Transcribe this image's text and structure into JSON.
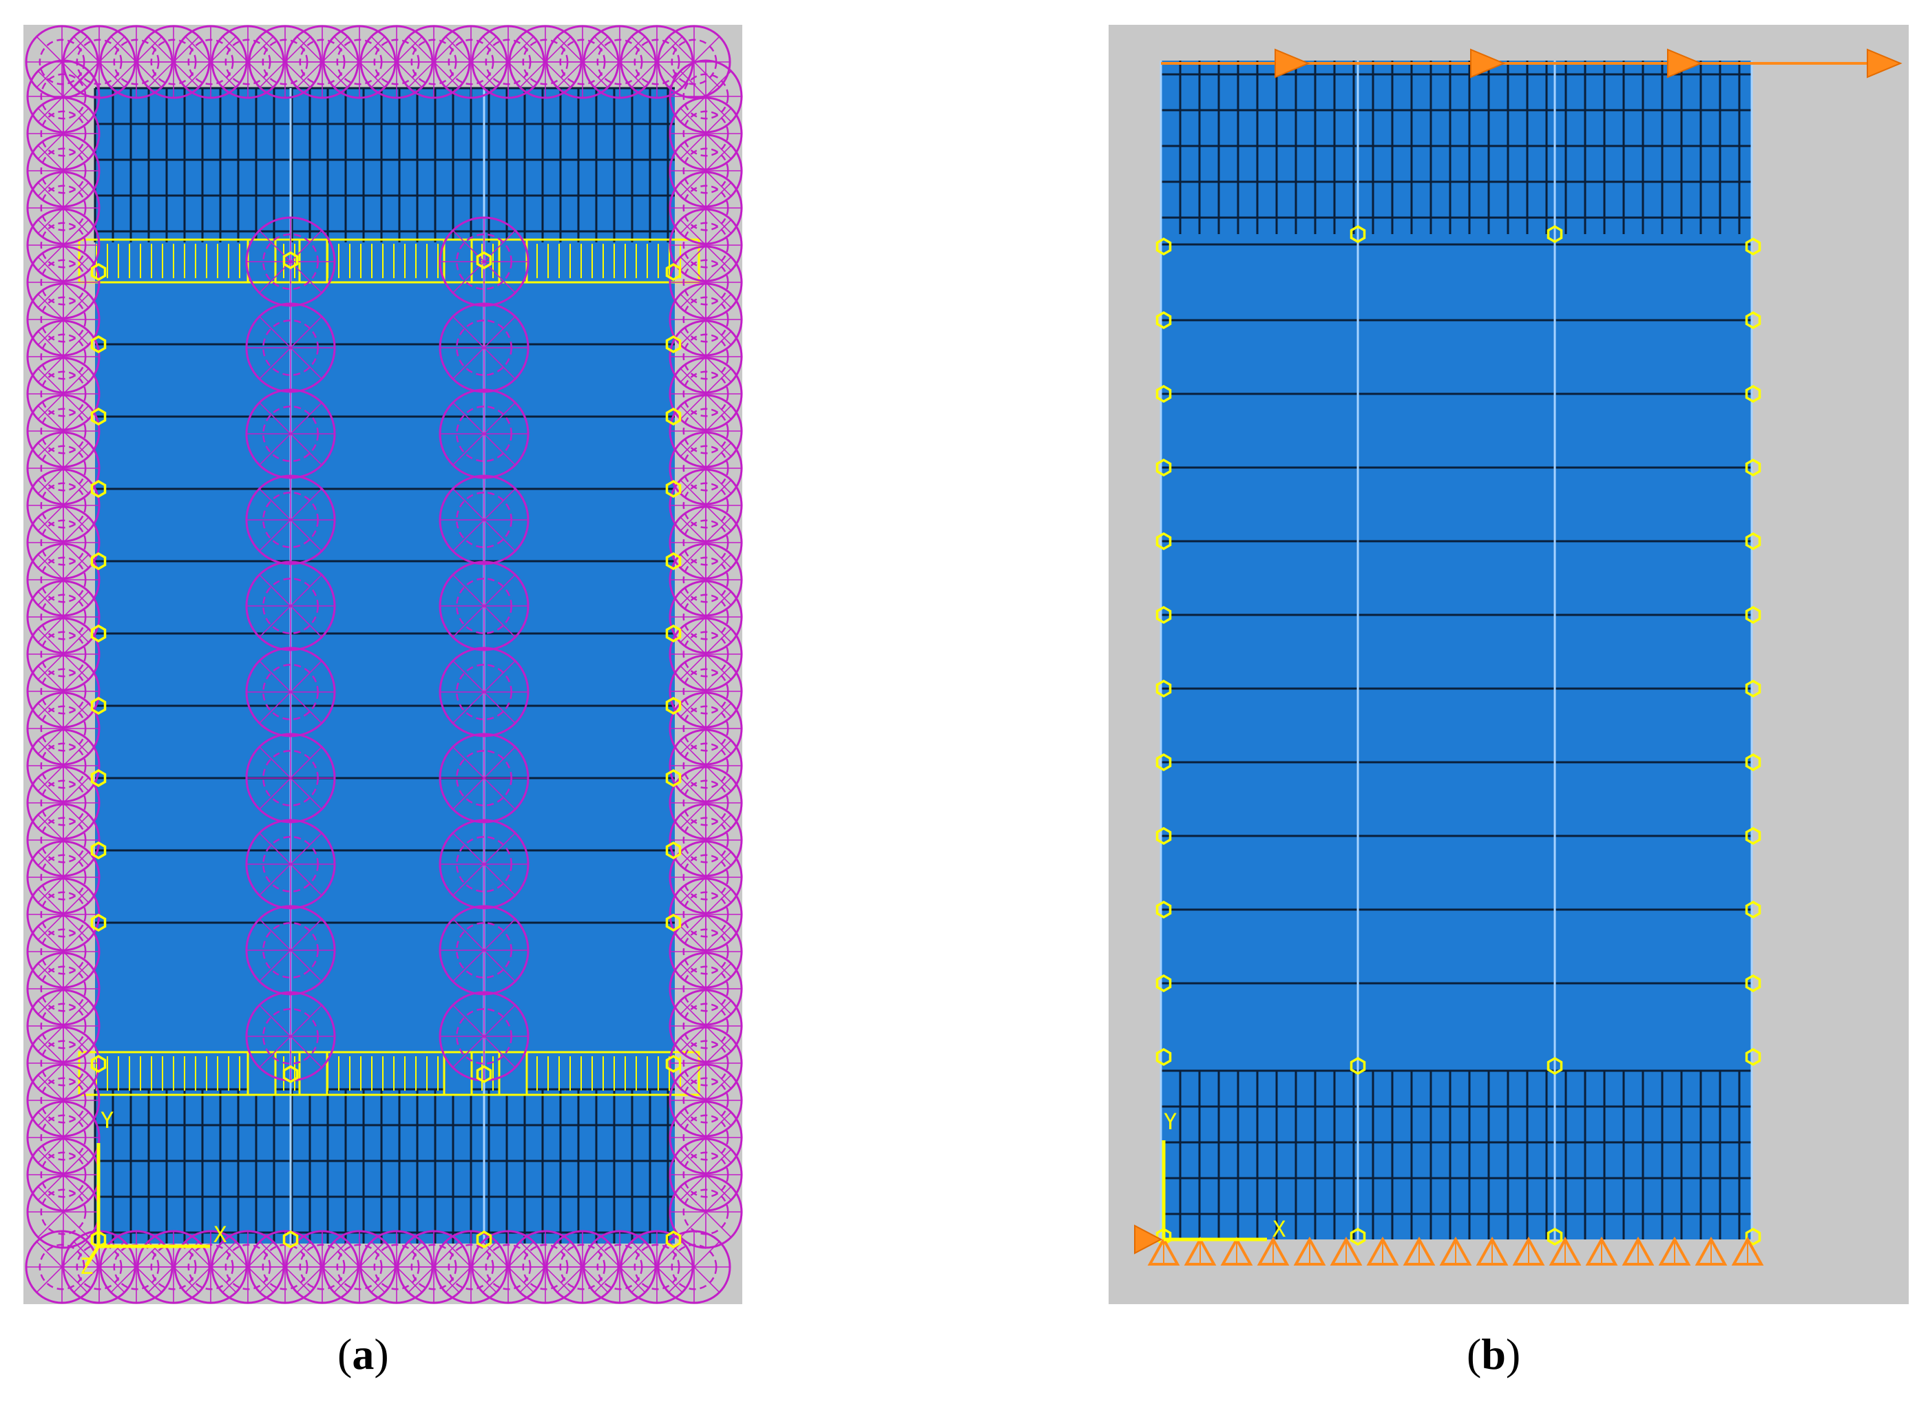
{
  "figure": {
    "panels": [
      {
        "id": "a",
        "caption": "a",
        "axes": {
          "y": "Y",
          "x": "X",
          "z": "Z"
        }
      },
      {
        "id": "b",
        "caption": "b",
        "axes": {
          "y": "Y",
          "x": "X"
        }
      }
    ]
  },
  "colors": {
    "background": "#c8c8c8",
    "model": "#1f7bd3",
    "mesh_line": "#0a1f3a",
    "partition_line": "#a6d3ff",
    "node_marker": "#ffff00",
    "constraint_circle": "#c21ec8",
    "load_arrow": "#ff8a1a",
    "support": "#ff8a1a"
  },
  "icons": {
    "constraint": "circle-constraint-icon",
    "node": "node-hexagon-icon",
    "load": "arrow-right-icon",
    "support": "cone-support-icon"
  }
}
